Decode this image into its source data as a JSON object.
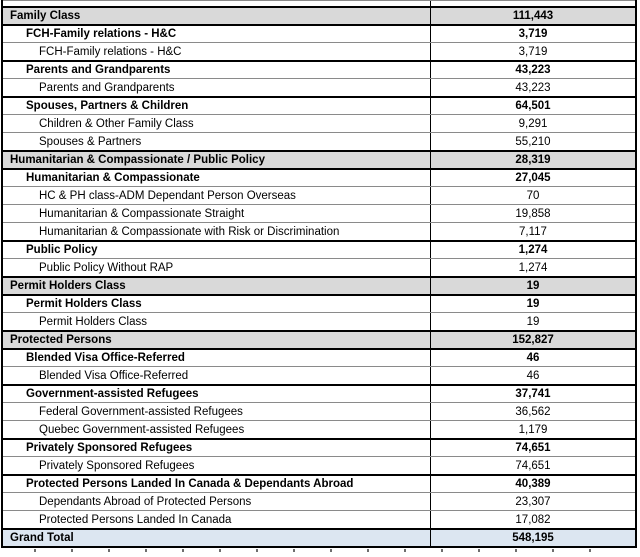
{
  "chart_data": {
    "type": "table",
    "rows": [
      {
        "label": "Family Class",
        "value": "111,443",
        "level": "section"
      },
      {
        "label": "FCH-Family relations - H&C",
        "value": "3,719",
        "level": "group"
      },
      {
        "label": "FCH-Family relations - H&C",
        "value": "3,719",
        "level": "item"
      },
      {
        "label": "Parents and Grandparents",
        "value": "43,223",
        "level": "group"
      },
      {
        "label": "Parents and Grandparents",
        "value": "43,223",
        "level": "item"
      },
      {
        "label": "Spouses, Partners & Children",
        "value": "64,501",
        "level": "group"
      },
      {
        "label": "Children & Other Family Class",
        "value": "9,291",
        "level": "item"
      },
      {
        "label": "Spouses & Partners",
        "value": "55,210",
        "level": "item"
      },
      {
        "label": "Humanitarian & Compassionate / Public Policy",
        "value": "28,319",
        "level": "section"
      },
      {
        "label": "Humanitarian & Compassionate",
        "value": "27,045",
        "level": "group"
      },
      {
        "label": "HC & PH class-ADM Dependant Person Overseas",
        "value": "70",
        "level": "item"
      },
      {
        "label": "Humanitarian & Compassionate Straight",
        "value": "19,858",
        "level": "item"
      },
      {
        "label": "Humanitarian & Compassionate with Risk or Discrimination",
        "value": "7,117",
        "level": "item"
      },
      {
        "label": "Public Policy",
        "value": "1,274",
        "level": "group"
      },
      {
        "label": "Public Policy Without RAP",
        "value": "1,274",
        "level": "item"
      },
      {
        "label": "Permit Holders Class",
        "value": "19",
        "level": "section"
      },
      {
        "label": "Permit Holders Class",
        "value": "19",
        "level": "group"
      },
      {
        "label": "Permit Holders Class",
        "value": "19",
        "level": "item"
      },
      {
        "label": "Protected Persons",
        "value": "152,827",
        "level": "section"
      },
      {
        "label": "Blended Visa Office-Referred",
        "value": "46",
        "level": "group"
      },
      {
        "label": "Blended Visa Office-Referred",
        "value": "46",
        "level": "item"
      },
      {
        "label": "Government-assisted Refugees",
        "value": "37,741",
        "level": "group"
      },
      {
        "label": "Federal Government-assisted Refugees",
        "value": "36,562",
        "level": "item"
      },
      {
        "label": "Quebec Government-assisted Refugees",
        "value": "1,179",
        "level": "item"
      },
      {
        "label": "Privately Sponsored Refugees",
        "value": "74,651",
        "level": "group"
      },
      {
        "label": "Privately Sponsored Refugees",
        "value": "74,651",
        "level": "item"
      },
      {
        "label": "Protected Persons Landed In Canada & Dependants Abroad",
        "value": "40,389",
        "level": "group"
      },
      {
        "label": "Dependants Abroad of Protected Persons",
        "value": "23,307",
        "level": "item"
      },
      {
        "label": "Protected Persons Landed In Canada",
        "value": "17,082",
        "level": "item"
      },
      {
        "label": "Grand Total",
        "value": "548,195",
        "level": "total"
      }
    ]
  },
  "colors": {
    "section_row_bg": "#d9d9d9",
    "grand_total_row_bg": "#dce6f1",
    "grid_strong": "#000000",
    "grid_light": "#8a8a8a"
  }
}
